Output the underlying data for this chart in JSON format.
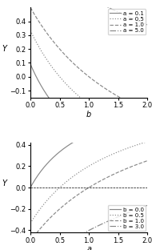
{
  "top": {
    "a_values": [
      0.1,
      0.5,
      1.0,
      5.0
    ],
    "line_styles": [
      "-",
      ":",
      "--",
      "-."
    ],
    "labels": [
      "a = 0.1",
      "a = 0.5",
      "a = 1.0",
      "a = 5.0"
    ],
    "xlabel": "b",
    "ylabel": "Y",
    "xlim": [
      0.0,
      2.0
    ],
    "ylim": [
      -0.15,
      0.5
    ],
    "yticks": [
      -0.1,
      0.0,
      0.1,
      0.2,
      0.3,
      0.4
    ],
    "xticks": [
      0.0,
      0.5,
      1.0,
      1.5,
      2.0
    ],
    "legend_loc": "upper right"
  },
  "bottom": {
    "b_values": [
      0.0,
      0.5,
      1.0,
      3.0
    ],
    "line_styles": [
      "-",
      ":",
      "--",
      "-."
    ],
    "labels": [
      "b = 0.0",
      "b = 0.5",
      "b = 1.0",
      "b = 3.0"
    ],
    "xlabel": "a",
    "ylabel": "Y",
    "xlim": [
      0.0,
      2.0
    ],
    "ylim": [
      -0.42,
      0.42
    ],
    "yticks": [
      -0.4,
      -0.2,
      0.0,
      0.2,
      0.4
    ],
    "xticks": [
      0.0,
      0.5,
      1.0,
      1.5,
      2.0
    ],
    "legend_loc": "lower right"
  },
  "line_color": "#888888",
  "figsize": [
    1.9,
    3.12
  ],
  "dpi": 100
}
